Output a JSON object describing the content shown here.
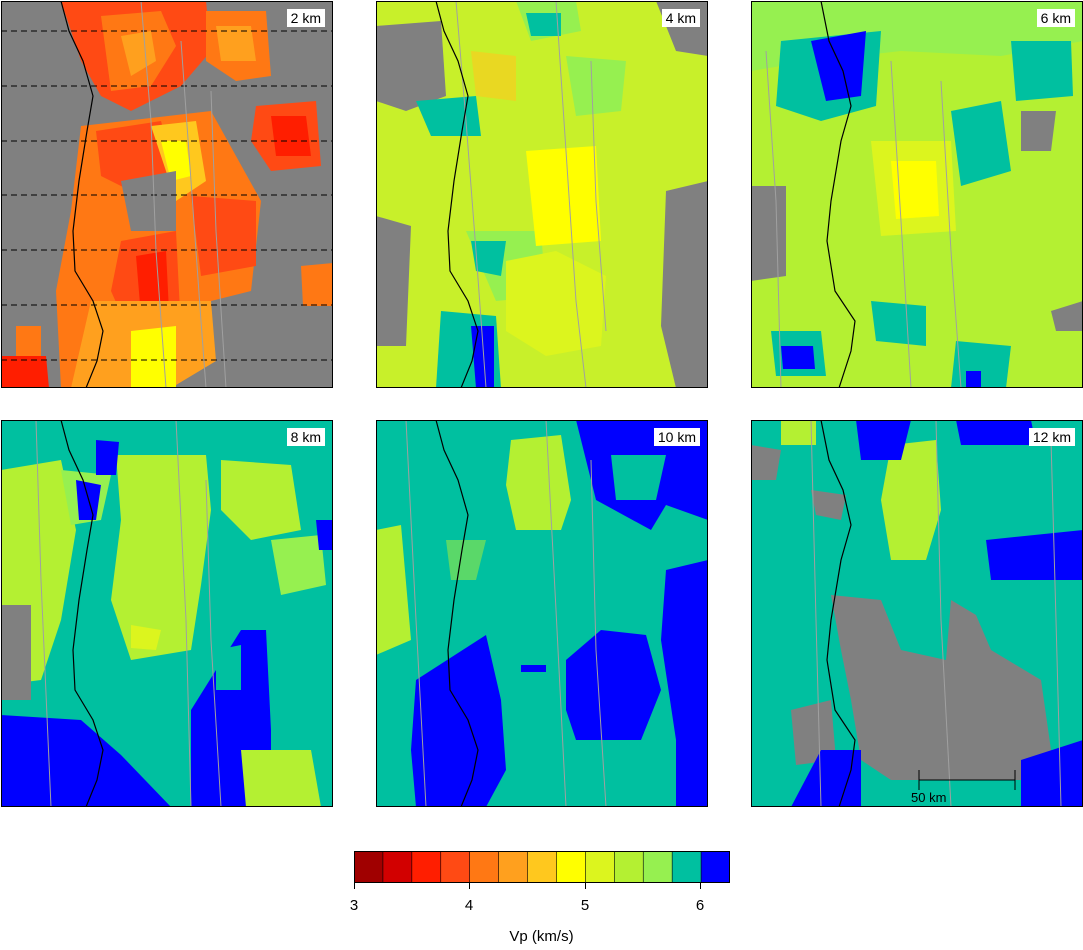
{
  "panels": [
    {
      "depth_label": "2 km",
      "bg": "#808080",
      "dashed_lines": true
    },
    {
      "depth_label": "4 km",
      "bg": "#c8f02a"
    },
    {
      "depth_label": "6 km",
      "bg": "#b4f032"
    },
    {
      "depth_label": "8 km",
      "bg": "#00c0a0"
    },
    {
      "depth_label": "10 km",
      "bg": "#00c0a0"
    },
    {
      "depth_label": "12 km",
      "bg": "#00c0a0",
      "scale_bar_label": "50 km"
    }
  ],
  "colorbar": {
    "title": "Vp (km/s)",
    "tick_labels": [
      "3",
      "4",
      "5",
      "6"
    ],
    "colors": [
      "#a00000",
      "#d20000",
      "#ff1e00",
      "#ff4a14",
      "#ff7814",
      "#ffa01e",
      "#ffc81e",
      "#ffff00",
      "#dcf51e",
      "#b4f032",
      "#96f050",
      "#00c0a0",
      "#0000ff"
    ]
  }
}
